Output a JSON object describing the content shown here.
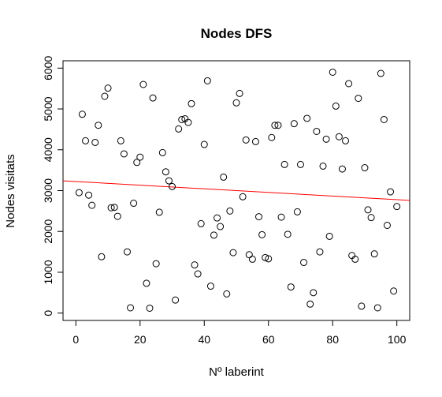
{
  "chart_data": {
    "type": "scatter",
    "title": "Nodes DFS",
    "xlabel": "Nº laberint",
    "ylabel": "Nodes visitats",
    "xlim": [
      -4,
      104
    ],
    "ylim": [
      -180,
      6180
    ],
    "xticks": [
      0,
      20,
      40,
      60,
      80,
      100
    ],
    "yticks": [
      0,
      1000,
      2000,
      3000,
      4000,
      5000,
      6000
    ],
    "grid": false,
    "legend": "none",
    "point_style": "open-circle",
    "series": [
      {
        "x": [
          1,
          2,
          3,
          4,
          5,
          6,
          7,
          8,
          9,
          10,
          11,
          12,
          13,
          14,
          15,
          16,
          17,
          18,
          19,
          20,
          21,
          22,
          23,
          24,
          25,
          26,
          27,
          28,
          29,
          30,
          31,
          32,
          33,
          34,
          35,
          36,
          37,
          38,
          39,
          40,
          41,
          42,
          43,
          44,
          45,
          46,
          47,
          48,
          49,
          50,
          51,
          52,
          53,
          54,
          55,
          56,
          57,
          58,
          59,
          60,
          61,
          62,
          63,
          64,
          65,
          66,
          67,
          68,
          69,
          70,
          71,
          72,
          73,
          74,
          75,
          76,
          77,
          78,
          79,
          80,
          81,
          82,
          83,
          84,
          85,
          86,
          87,
          88,
          89,
          90,
          91,
          92,
          93,
          94,
          95,
          96,
          97,
          98,
          99,
          100
        ],
        "y": [
          2950,
          4870,
          4220,
          2890,
          2640,
          4180,
          4600,
          1380,
          5310,
          5510,
          2580,
          2590,
          2370,
          4220,
          3900,
          1500,
          130,
          2690,
          3690,
          3820,
          5600,
          730,
          120,
          5270,
          1210,
          2470,
          3930,
          3460,
          3240,
          3100,
          320,
          4510,
          4740,
          4760,
          4670,
          5130,
          1180,
          960,
          2190,
          4130,
          5690,
          660,
          1910,
          2330,
          2120,
          3330,
          470,
          2500,
          1480,
          5150,
          5380,
          2850,
          4240,
          1430,
          1320,
          4200,
          2360,
          1920,
          1360,
          1330,
          4300,
          4600,
          4600,
          2350,
          3640,
          1930,
          640,
          4640,
          2480,
          3640,
          1240,
          4770,
          220,
          500,
          4450,
          1500,
          3600,
          4260,
          1880,
          5900,
          5070,
          4320,
          3530,
          4220,
          5620,
          1410,
          1320,
          5260,
          170,
          3560,
          2530,
          2340,
          1450,
          130,
          5870,
          4740,
          2150,
          2970,
          540,
          2610
        ]
      }
    ],
    "trend_line": {
      "x": [
        -4,
        104
      ],
      "y": [
        3240,
        2760
      ],
      "color": "#ff0000"
    },
    "colors": {
      "points": "#000000",
      "axis": "#000000",
      "trend": "#ff0000"
    }
  }
}
